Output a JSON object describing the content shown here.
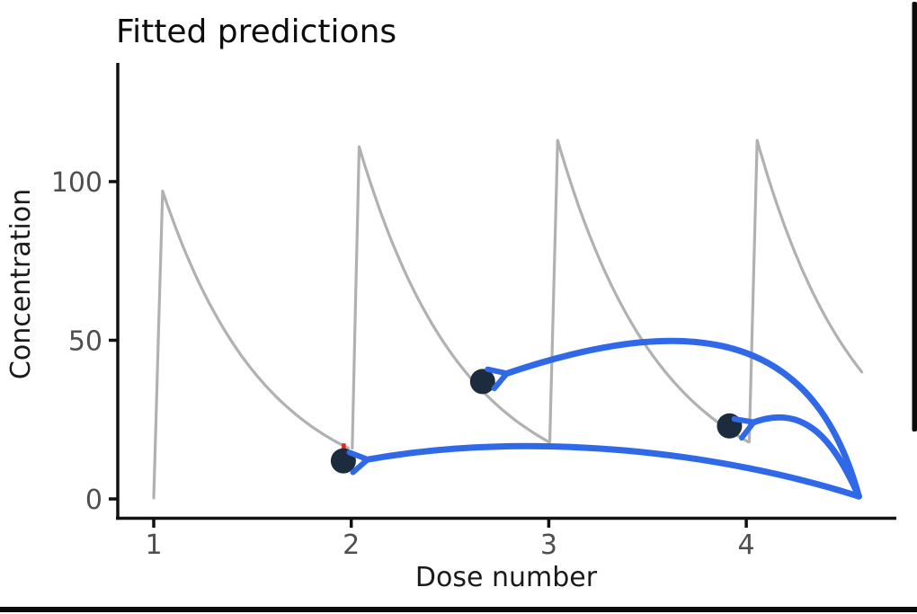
{
  "chart_data": {
    "type": "line",
    "title": "Fitted predictions",
    "xlabel": "Dose number",
    "ylabel": "Concentration",
    "x_ticks": [
      1,
      2,
      3,
      4
    ],
    "y_ticks": [
      0,
      50,
      100
    ],
    "xlim": [
      0.82,
      4.76
    ],
    "ylim": [
      -6.5,
      137
    ],
    "grid": false,
    "legend": "none",
    "curve_color": "#b1b1b1",
    "axis_color": "#111111",
    "tick_label_color": "#4f4f4f",
    "series": [
      {
        "name": "dose-interval-1",
        "t_start": 1.0,
        "c_start": 0.3,
        "t_peak": 1.045,
        "c_peak": 97,
        "t_end": 1.985,
        "c_end": 16
      },
      {
        "name": "dose-interval-2",
        "t_start": 2.005,
        "c_start": 16,
        "t_peak": 2.04,
        "c_peak": 111,
        "t_end": 3.0,
        "c_end": 18
      },
      {
        "name": "dose-interval-3",
        "t_start": 3.005,
        "c_start": 18,
        "t_peak": 3.045,
        "c_peak": 113,
        "t_end": 4.01,
        "c_end": 18
      },
      {
        "name": "dose-interval-4",
        "t_start": 4.015,
        "c_start": 18,
        "t_peak": 4.055,
        "c_peak": 113,
        "t_end": 4.585,
        "c_end": 40
      }
    ],
    "points": [
      {
        "name": "observation-1",
        "x": 1.96,
        "y": 12
      },
      {
        "name": "observation-2",
        "x": 2.665,
        "y": 37
      },
      {
        "name": "observation-3",
        "x": 3.915,
        "y": 23
      }
    ],
    "point_color": "#1c2c3e",
    "point_radius_px": 14,
    "residual_tick": {
      "x": 1.962,
      "y_from": 14.2,
      "y_to": 17.5,
      "color": "#e62520"
    },
    "arrows": {
      "color": "#3069e8",
      "origin": {
        "x": 4.57,
        "y": 0.8
      },
      "items": [
        {
          "name": "arrow-to-observation-2",
          "to_point": 1,
          "arc": "high"
        },
        {
          "name": "arrow-to-observation-3",
          "to_point": 2,
          "arc": "mid"
        },
        {
          "name": "arrow-to-observation-1",
          "to_point": 0,
          "arc": "flat"
        }
      ]
    }
  },
  "frame": {
    "right_edge_color": "#0b0b0b",
    "bottom_edge_color": "#0b0b0b"
  }
}
